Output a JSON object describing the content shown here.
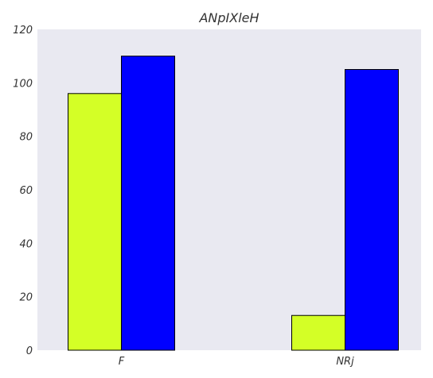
{
  "chart_data": {
    "type": "bar",
    "title": "ANpIXleH",
    "xlabel": "",
    "ylabel": "",
    "categories": [
      "F",
      "NRj"
    ],
    "ylim": [
      0,
      120
    ],
    "yticks": [
      0,
      20,
      40,
      60,
      80,
      100,
      120
    ],
    "grid": false,
    "legend": "none",
    "series": [
      {
        "values": [
          96,
          13
        ],
        "color": "#d4ff26"
      },
      {
        "values": [
          110,
          105
        ],
        "color": "#0000ff"
      }
    ],
    "background": "#e9e9f1"
  }
}
